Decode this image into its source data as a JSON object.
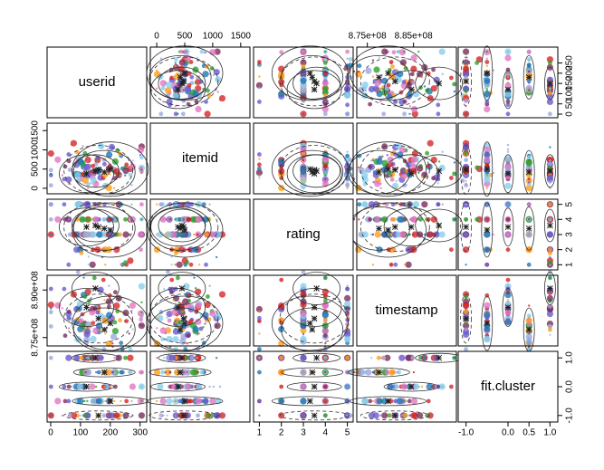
{
  "chart_data": {
    "type": "scatter-matrix",
    "variables": [
      "userid",
      "itemid",
      "rating",
      "timestamp",
      "fit.cluster"
    ],
    "ranges": {
      "userid": [
        0,
        310
      ],
      "itemid": [
        -50,
        1600
      ],
      "rating": [
        0.9,
        5.1
      ],
      "timestamp": [
        873500000.0,
        893500000.0
      ],
      "fit.cluster": [
        -1.1,
        1.1
      ]
    },
    "axes": {
      "userid": {
        "side": "bottom",
        "ticks": [
          0,
          100,
          200,
          300
        ],
        "labels": [
          "0",
          "100",
          "200",
          "300"
        ]
      },
      "itemid": {
        "side": "top",
        "ticks": [
          0,
          500,
          1000,
          1500
        ],
        "labels": [
          "0",
          "500",
          "1000",
          "1500"
        ]
      },
      "rating": {
        "side": "bottom",
        "ticks": [
          1,
          2,
          3,
          4,
          5
        ],
        "labels": [
          "1",
          "2",
          "3",
          "4",
          "5"
        ]
      },
      "timestamp": {
        "side": "top",
        "ticks": [
          875000000.0,
          885000000.0
        ],
        "labels": [
          "8.75e+08",
          "8.85e+08"
        ]
      },
      "fit.cluster": {
        "side": "bottom",
        "ticks": [
          -1,
          0,
          0.5,
          1
        ],
        "labels": [
          "-1.0",
          "0.0",
          "0.5",
          "1.0"
        ]
      },
      "row_userid": {
        "side": "right",
        "ticks": [
          0,
          50,
          100,
          150,
          200,
          250
        ],
        "labels": [
          "0",
          "50",
          "100",
          "150",
          "200",
          "250"
        ]
      },
      "row_itemid": {
        "side": "left",
        "ticks": [
          0,
          500,
          1000,
          1500
        ],
        "labels": [
          "0",
          "500",
          "1000",
          "1500"
        ]
      },
      "row_rating": {
        "side": "right",
        "ticks": [
          1,
          2,
          3,
          4,
          5
        ],
        "labels": [
          "1",
          "2",
          "3",
          "4",
          "5"
        ]
      },
      "row_timestamp": {
        "side": "left",
        "ticks": [
          875000000.0,
          890000000.0
        ],
        "labels": [
          "8.75e+08",
          "8.90e+08"
        ]
      },
      "row_fitcluster": {
        "side": "right",
        "ticks": [
          -1,
          0,
          1
        ],
        "labels": [
          "-1.0",
          "0.0",
          "1.0"
        ]
      }
    },
    "cluster_colors": [
      "#d62728",
      "#2ca02c",
      "#1f77b4",
      "#7b2d5a",
      "#ff9f1c",
      "#87ceeb",
      "#6a5acd",
      "#9aa7e0",
      "#e377c2"
    ],
    "clusters": [
      {
        "fit_cluster": 1.0,
        "userid_mean": 150,
        "itemid_mean": 450,
        "rating_mean": 3.6,
        "timestamp_mean": 890500000.0
      },
      {
        "fit_cluster": 0.0,
        "userid_mean": 120,
        "itemid_mean": 380,
        "rating_mean": 3.5,
        "timestamp_mean": 884500000.0
      },
      {
        "fit_cluster": 0.5,
        "userid_mean": 180,
        "itemid_mean": 420,
        "rating_mean": 3.4,
        "timestamp_mean": 877500000.0
      },
      {
        "fit_cluster": -1.0,
        "userid_mean": 160,
        "itemid_mean": 480,
        "rating_mean": 3.5,
        "timestamp_mean": 881000000.0
      },
      {
        "fit_cluster": -0.5,
        "userid_mean": 200,
        "itemid_mean": 500,
        "rating_mean": 3.3,
        "timestamp_mean": 879500000.0
      }
    ],
    "title": "",
    "grid": false
  }
}
